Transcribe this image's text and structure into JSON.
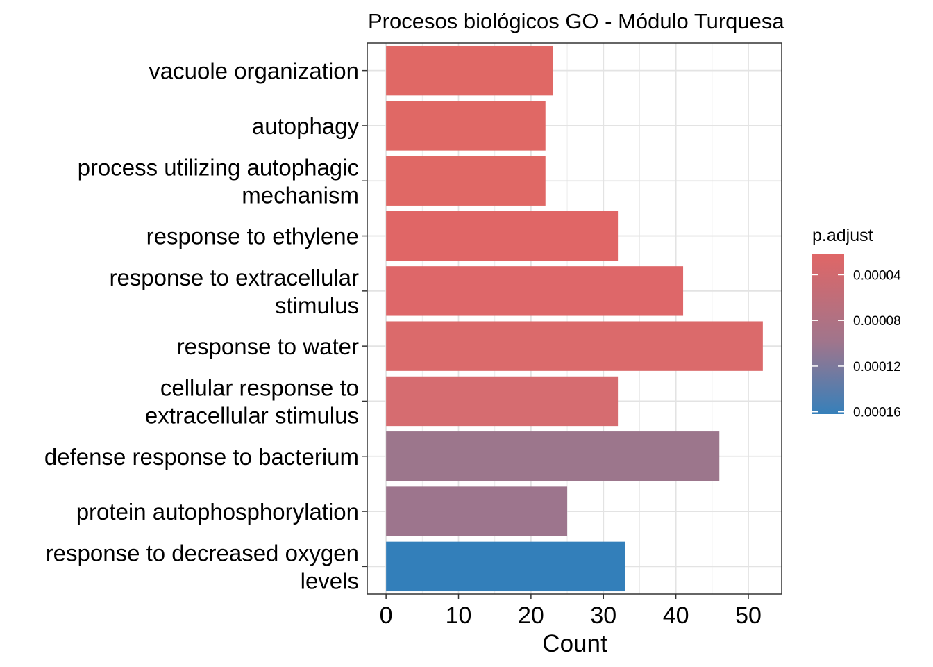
{
  "chart_data": {
    "type": "bar",
    "orientation": "horizontal",
    "title": "Procesos biológicos GO - Módulo Turquesa",
    "xlabel": "Count",
    "ylabel": "",
    "xlim": [
      -2.6,
      54.6
    ],
    "xticks": [
      "0",
      "10",
      "20",
      "30",
      "40",
      "50"
    ],
    "grid": true,
    "categories": [
      [
        "vacuole organization"
      ],
      [
        "autophagy"
      ],
      [
        "process utilizing autophagic",
        "mechanism"
      ],
      [
        "response to ethylene"
      ],
      [
        "response to extracellular",
        "stimulus"
      ],
      [
        "response to water"
      ],
      [
        "cellular response to",
        "extracellular stimulus"
      ],
      [
        "defense response to bacterium"
      ],
      [
        "protein autophosphorylation"
      ],
      [
        "response to decreased oxygen",
        "levels"
      ]
    ],
    "values": [
      23,
      22,
      22,
      32,
      41,
      52,
      32,
      46,
      25,
      33
    ],
    "colors": [
      "#E06865",
      "#E06865",
      "#E06865",
      "#E06666",
      "#DE6769",
      "#DB6A6B",
      "#D66C70",
      "#9C768C",
      "#9D758D",
      "#337FBA"
    ],
    "legend": {
      "title": "p.adjust",
      "position": "right",
      "gradient": [
        "#E06666",
        "#A0758C",
        "#3680BA"
      ],
      "ticks": [
        "0.00004",
        "0.00008",
        "0.00012",
        "0.00016"
      ]
    }
  }
}
